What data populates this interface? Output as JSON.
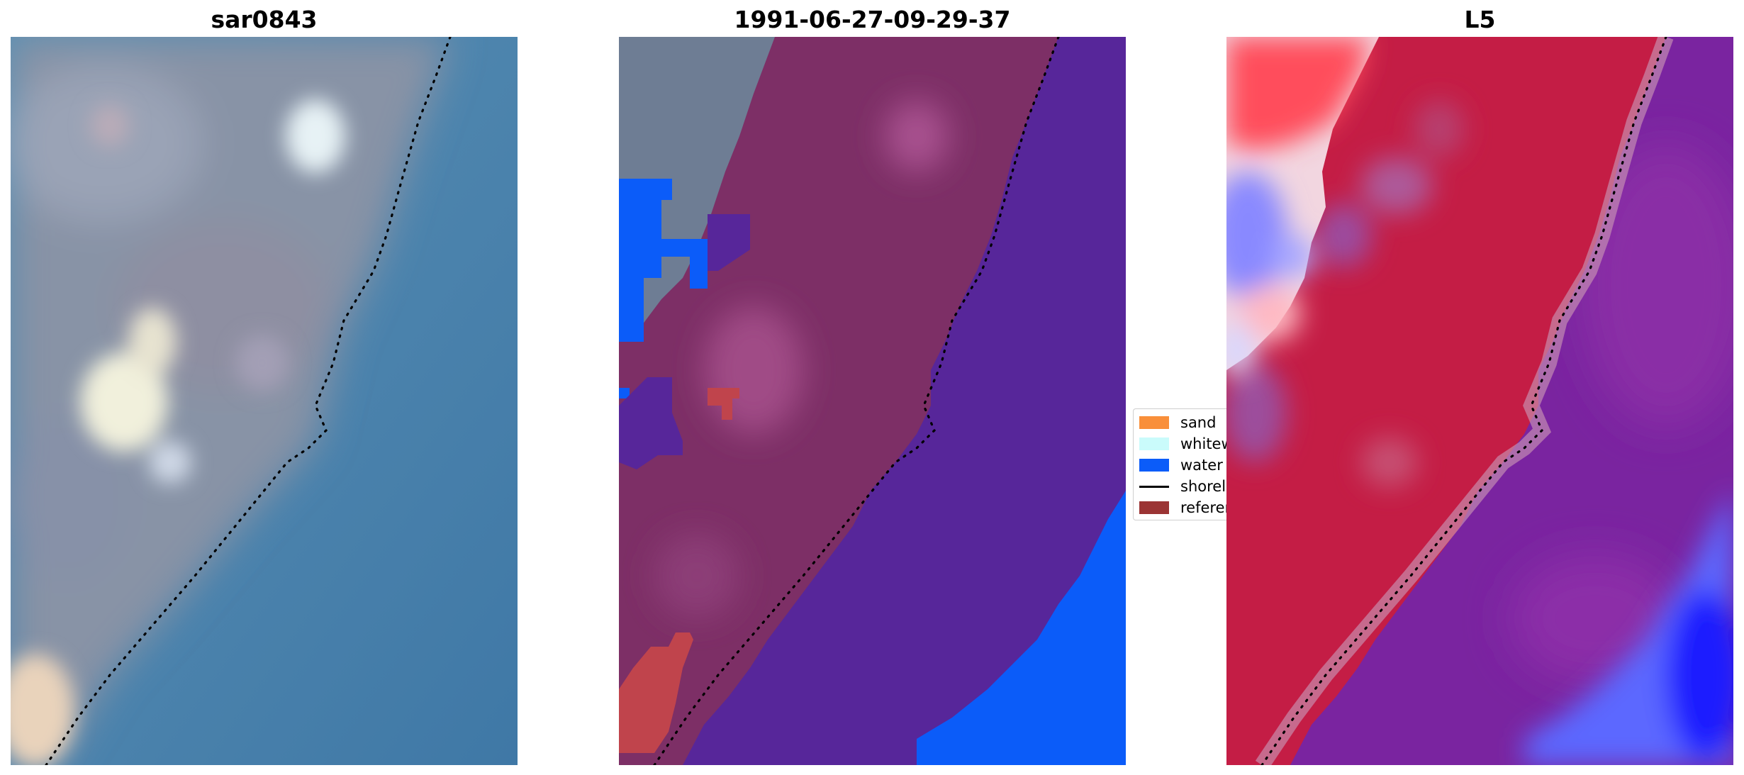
{
  "panels": [
    {
      "title": "sar0843"
    },
    {
      "title": "1991-06-27-09-29-37"
    },
    {
      "title": "L5"
    }
  ],
  "legend": {
    "items": [
      {
        "label": "sand",
        "color": "#f98f3a",
        "kind": "patch"
      },
      {
        "label": "whitewater",
        "color": "#cafbfb",
        "kind": "patch"
      },
      {
        "label": "water",
        "color": "#0b5cf9",
        "kind": "patch"
      },
      {
        "label": "shoreline",
        "color": "#000000",
        "kind": "line"
      },
      {
        "label": "reference",
        "color": "#9b3434",
        "kind": "patch"
      }
    ]
  },
  "colors": {
    "classified_land": "#7d2f66",
    "classified_water_offshore": "#57269a",
    "classified_water_mask": "#0b5cf9",
    "classified_reference": "#c0444c",
    "rgb_land": "#8891a3",
    "rgb_water": "#4f87ad",
    "index_land": "#c41d45",
    "index_water": "#7a24a0",
    "index_low": "#5b67ff",
    "shoreline": "#000000"
  }
}
